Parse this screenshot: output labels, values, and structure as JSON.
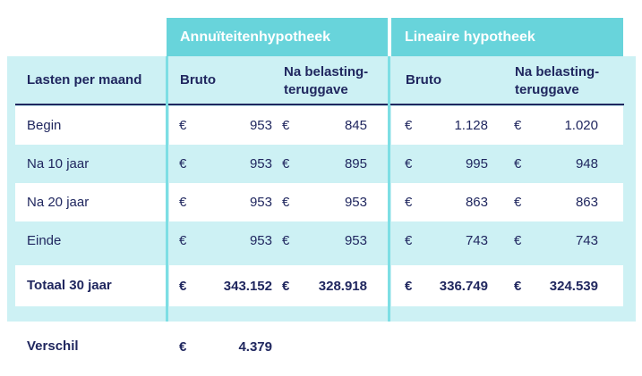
{
  "groups": {
    "annuiteiten_title": "Annuïteitenhypotheek",
    "lineair_title": "Lineaire hypotheek"
  },
  "column_headers": {
    "label": "Lasten per maand",
    "bruto": "Bruto",
    "na_belasting": "Na belasting-teruggave"
  },
  "currency": "€",
  "rows": [
    {
      "label": "Begin",
      "annu_bruto": "953",
      "annu_na": "845",
      "lin_bruto": "1.128",
      "lin_na": "1.020"
    },
    {
      "label": "Na 10 jaar",
      "annu_bruto": "953",
      "annu_na": "895",
      "lin_bruto": "995",
      "lin_na": "948"
    },
    {
      "label": "Na 20 jaar",
      "annu_bruto": "953",
      "annu_na": "953",
      "lin_bruto": "863",
      "lin_na": "863"
    },
    {
      "label": "Einde",
      "annu_bruto": "953",
      "annu_na": "953",
      "lin_bruto": "743",
      "lin_na": "743"
    }
  ],
  "total_row": {
    "label": "Totaal 30 jaar",
    "annu_bruto": "343.152",
    "annu_na": "328.918",
    "lin_bruto": "336.749",
    "lin_na": "324.539"
  },
  "difference_row": {
    "label": "Verschil",
    "value": "4.379"
  },
  "colors": {
    "teal": "#68d4db",
    "teal_light": "#cdf1f4",
    "navy": "#20275f",
    "white": "#ffffff"
  },
  "chart_data": {
    "type": "table",
    "title": "Lasten per maand — Annuïteitenhypotheek vs Lineaire hypotheek",
    "column_groups": [
      "Annuïteitenhypotheek",
      "Lineaire hypotheek"
    ],
    "columns": [
      "Lasten per maand",
      "Annuïteitenhypotheek Bruto",
      "Annuïteitenhypotheek Na belasting-teruggave",
      "Lineaire hypotheek Bruto",
      "Lineaire hypotheek Na belasting-teruggave"
    ],
    "rows": [
      [
        "Begin",
        "€ 953",
        "€ 845",
        "€ 1.128",
        "€ 1.020"
      ],
      [
        "Na 10 jaar",
        "€ 953",
        "€ 895",
        "€ 995",
        "€ 948"
      ],
      [
        "Na 20 jaar",
        "€ 953",
        "€ 953",
        "€ 863",
        "€ 863"
      ],
      [
        "Einde",
        "€ 953",
        "€ 953",
        "€ 743",
        "€ 743"
      ],
      [
        "Totaal 30 jaar",
        "€ 343.152",
        "€ 328.918",
        "€ 336.749",
        "€ 324.539"
      ],
      [
        "Verschil",
        "€ 4.379",
        "",
        "",
        ""
      ]
    ]
  }
}
